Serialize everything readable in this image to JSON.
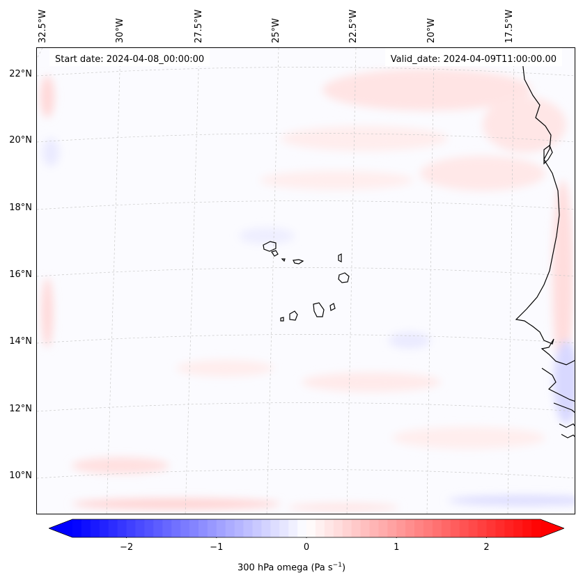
{
  "map": {
    "start_date": "Start date: 2024-04-08_00:00:00",
    "valid_date": "Valid_date: 2024-04-09T11:00:00.00",
    "lon_labels": [
      "32.5°W",
      "30°W",
      "27.5°W",
      "25°W",
      "22.5°W",
      "20°W",
      "17.5°W"
    ],
    "lat_labels": [
      "22°N",
      "20°N",
      "18°N",
      "16°N",
      "14°N",
      "12°N",
      "10°N"
    ],
    "colors": {
      "coastline": "#000000",
      "grid": "#c8c8c8",
      "positive": "#ff0000",
      "negative": "#0000ff",
      "neutral": "#ffffff"
    }
  },
  "colorbar": {
    "label": "300 hPa omega (Pa s",
    "label_sup": "−1",
    "label_end": ")",
    "range": [
      -2.6,
      2.6
    ],
    "ticks": [
      "−2",
      "−1",
      "0",
      "1",
      "2"
    ],
    "tick_values": [
      -2,
      -1,
      0,
      1,
      2
    ],
    "cmap": "bwr"
  }
}
